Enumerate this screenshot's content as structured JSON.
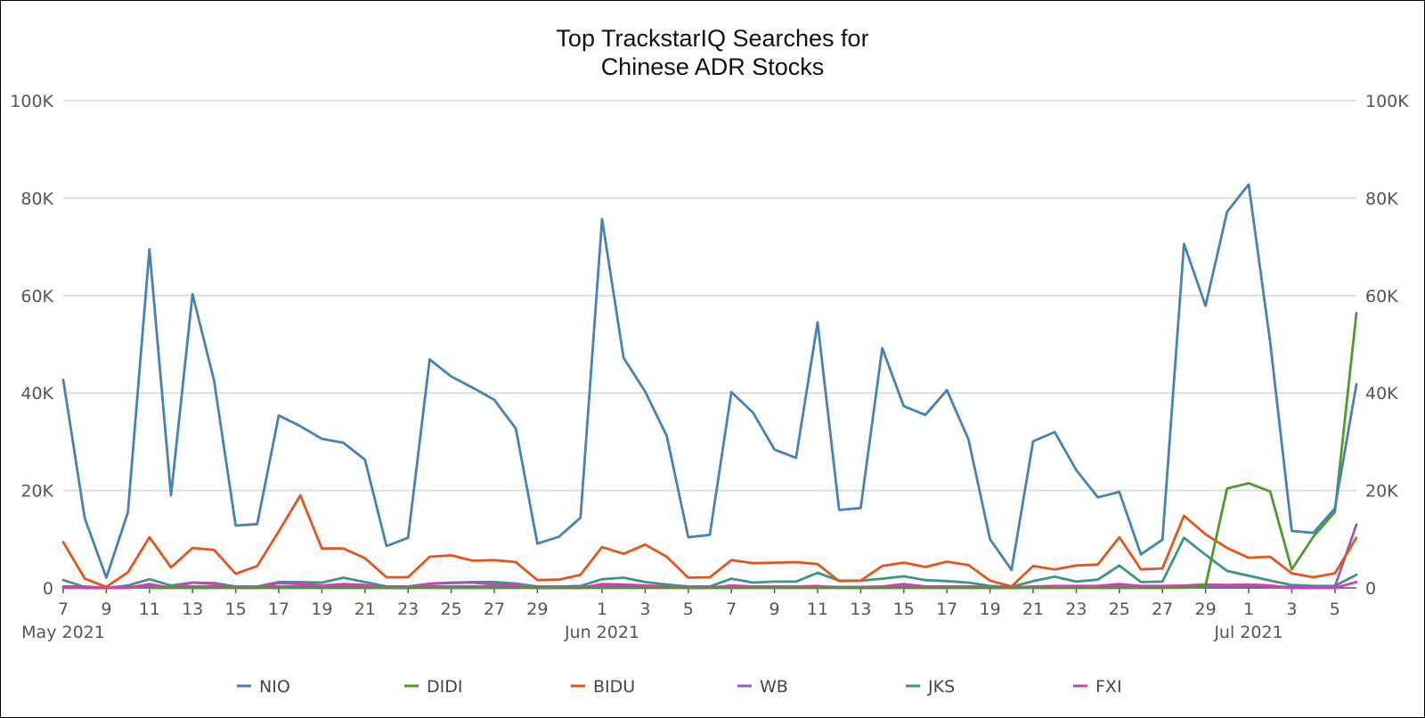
{
  "chart_data": {
    "type": "line",
    "title": [
      "Top TrackstarIQ Searches for",
      "Chinese ADR Stocks"
    ],
    "x": [
      "2021-05-07",
      "2021-05-08",
      "2021-05-09",
      "2021-05-10",
      "2021-05-11",
      "2021-05-12",
      "2021-05-13",
      "2021-05-14",
      "2021-05-15",
      "2021-05-16",
      "2021-05-17",
      "2021-05-18",
      "2021-05-19",
      "2021-05-20",
      "2021-05-21",
      "2021-05-22",
      "2021-05-23",
      "2021-05-24",
      "2021-05-25",
      "2021-05-26",
      "2021-05-27",
      "2021-05-28",
      "2021-05-29",
      "2021-05-30",
      "2021-05-31",
      "2021-06-01",
      "2021-06-02",
      "2021-06-03",
      "2021-06-04",
      "2021-06-05",
      "2021-06-06",
      "2021-06-07",
      "2021-06-08",
      "2021-06-09",
      "2021-06-10",
      "2021-06-11",
      "2021-06-12",
      "2021-06-13",
      "2021-06-14",
      "2021-06-15",
      "2021-06-16",
      "2021-06-17",
      "2021-06-18",
      "2021-06-19",
      "2021-06-20",
      "2021-06-21",
      "2021-06-22",
      "2021-06-23",
      "2021-06-24",
      "2021-06-25",
      "2021-06-26",
      "2021-06-27",
      "2021-06-28",
      "2021-06-29",
      "2021-06-30",
      "2021-07-01",
      "2021-07-02",
      "2021-07-03",
      "2021-07-04",
      "2021-07-05",
      "2021-07-06"
    ],
    "x_tick_labels": [
      {
        "date": "2021-05-07",
        "label": "7"
      },
      {
        "date": "2021-05-09",
        "label": "9"
      },
      {
        "date": "2021-05-11",
        "label": "11"
      },
      {
        "date": "2021-05-13",
        "label": "13"
      },
      {
        "date": "2021-05-15",
        "label": "15"
      },
      {
        "date": "2021-05-17",
        "label": "17"
      },
      {
        "date": "2021-05-19",
        "label": "19"
      },
      {
        "date": "2021-05-21",
        "label": "21"
      },
      {
        "date": "2021-05-23",
        "label": "23"
      },
      {
        "date": "2021-05-25",
        "label": "25"
      },
      {
        "date": "2021-05-27",
        "label": "27"
      },
      {
        "date": "2021-05-29",
        "label": "29"
      },
      {
        "date": "2021-06-01",
        "label": "1"
      },
      {
        "date": "2021-06-03",
        "label": "3"
      },
      {
        "date": "2021-06-05",
        "label": "5"
      },
      {
        "date": "2021-06-07",
        "label": "7"
      },
      {
        "date": "2021-06-09",
        "label": "9"
      },
      {
        "date": "2021-06-11",
        "label": "11"
      },
      {
        "date": "2021-06-13",
        "label": "13"
      },
      {
        "date": "2021-06-15",
        "label": "15"
      },
      {
        "date": "2021-06-17",
        "label": "17"
      },
      {
        "date": "2021-06-19",
        "label": "19"
      },
      {
        "date": "2021-06-21",
        "label": "21"
      },
      {
        "date": "2021-06-23",
        "label": "23"
      },
      {
        "date": "2021-06-25",
        "label": "25"
      },
      {
        "date": "2021-06-27",
        "label": "27"
      },
      {
        "date": "2021-06-29",
        "label": "29"
      },
      {
        "date": "2021-07-01",
        "label": "1"
      },
      {
        "date": "2021-07-03",
        "label": "3"
      },
      {
        "date": "2021-07-05",
        "label": "5"
      }
    ],
    "x_month_labels": [
      {
        "date": "2021-05-07",
        "label": "May 2021"
      },
      {
        "date": "2021-06-01",
        "label": "Jun 2021"
      },
      {
        "date": "2021-07-01",
        "label": "Jul 2021"
      }
    ],
    "ylim": [
      0,
      100000
    ],
    "y_ticks": [
      {
        "value": 0,
        "label": "0"
      },
      {
        "value": 20000,
        "label": "20K"
      },
      {
        "value": 40000,
        "label": "40K"
      },
      {
        "value": 60000,
        "label": "60K"
      },
      {
        "value": 80000,
        "label": "80K"
      },
      {
        "value": 100000,
        "label": "100K"
      }
    ],
    "grid": true,
    "dual_y_axis_labels": true,
    "legend_position": "bottom",
    "series": [
      {
        "name": "NIO",
        "color": "#4682b4",
        "values": [
          42700,
          14300,
          2100,
          15500,
          69500,
          19000,
          60300,
          42500,
          12800,
          13100,
          35400,
          33200,
          30600,
          29800,
          26300,
          8600,
          10300,
          46900,
          43400,
          41100,
          38600,
          32700,
          9100,
          10500,
          14400,
          75700,
          47200,
          40300,
          31200,
          10400,
          10900,
          40200,
          36000,
          28400,
          26700,
          54500,
          16000,
          16400,
          49200,
          37300,
          35500,
          40600,
          30500,
          10000,
          3700,
          30100,
          32000,
          24200,
          18600,
          19700,
          6900,
          9900,
          70600,
          57900,
          77200,
          82800,
          50400,
          11700,
          11300,
          16300,
          41800
        ]
      },
      {
        "name": "DIDI",
        "color": "#4f9a2c",
        "values": [
          null,
          null,
          null,
          null,
          0,
          0,
          0,
          0,
          0,
          0,
          0,
          0,
          0,
          0,
          0,
          0,
          0,
          0,
          0,
          0,
          0,
          0,
          0,
          0,
          0,
          0,
          0,
          0,
          0,
          0,
          0,
          0,
          0,
          0,
          0,
          0,
          0,
          0,
          0,
          0,
          0,
          0,
          0,
          0,
          0,
          0,
          0,
          0,
          0,
          0,
          0,
          0,
          100,
          500,
          20400,
          21500,
          19800,
          3800,
          10500,
          15600,
          56400
        ]
      },
      {
        "name": "BIDU",
        "color": "#e4551d",
        "values": [
          9400,
          1900,
          200,
          3200,
          10400,
          4200,
          8200,
          7800,
          2900,
          4500,
          11600,
          19000,
          8100,
          8100,
          6100,
          2200,
          2200,
          6400,
          6700,
          5600,
          5700,
          5300,
          1600,
          1700,
          2700,
          8400,
          7000,
          8900,
          6400,
          2100,
          2200,
          5700,
          5100,
          5200,
          5300,
          4900,
          1400,
          1500,
          4500,
          5200,
          4300,
          5400,
          4700,
          1500,
          300,
          4500,
          3800,
          4600,
          4800,
          10400,
          3800,
          4000,
          14800,
          11000,
          8200,
          6200,
          6400,
          3000,
          2200,
          3000,
          10300
        ]
      },
      {
        "name": "WB",
        "color": "#8c5dc3",
        "values": [
          300,
          300,
          0,
          200,
          300,
          200,
          300,
          300,
          200,
          200,
          300,
          400,
          300,
          300,
          300,
          200,
          200,
          300,
          300,
          300,
          300,
          300,
          200,
          200,
          200,
          300,
          300,
          300,
          300,
          200,
          200,
          300,
          300,
          300,
          300,
          300,
          200,
          200,
          300,
          300,
          300,
          300,
          300,
          200,
          100,
          300,
          300,
          300,
          300,
          300,
          200,
          200,
          300,
          300,
          300,
          300,
          300,
          200,
          200,
          300,
          13000
        ]
      },
      {
        "name": "JKS",
        "color": "#3e9483",
        "values": [
          1600,
          200,
          0,
          500,
          1800,
          500,
          1100,
          1000,
          300,
          300,
          1200,
          1200,
          1100,
          2100,
          1200,
          300,
          300,
          900,
          1100,
          1200,
          1200,
          900,
          300,
          300,
          400,
          1800,
          2100,
          1200,
          700,
          300,
          300,
          1900,
          1100,
          1300,
          1300,
          3100,
          1500,
          1500,
          1900,
          2400,
          1600,
          1400,
          1100,
          400,
          200,
          1400,
          2300,
          1300,
          1700,
          4600,
          1200,
          1300,
          10300,
          6800,
          3500,
          2500,
          1500,
          600,
          400,
          400,
          2700
        ]
      },
      {
        "name": "FXI",
        "color": "#d53fae",
        "values": [
          100,
          0,
          0,
          0,
          800,
          0,
          1100,
          800,
          0,
          0,
          1000,
          900,
          500,
          800,
          600,
          0,
          0,
          800,
          1000,
          1100,
          700,
          500,
          0,
          0,
          0,
          800,
          700,
          500,
          300,
          0,
          0,
          500,
          300,
          300,
          300,
          400,
          0,
          0,
          300,
          800,
          300,
          300,
          300,
          0,
          0,
          300,
          400,
          400,
          400,
          800,
          400,
          400,
          500,
          700,
          600,
          700,
          500,
          0,
          0,
          0,
          1200
        ]
      }
    ]
  }
}
